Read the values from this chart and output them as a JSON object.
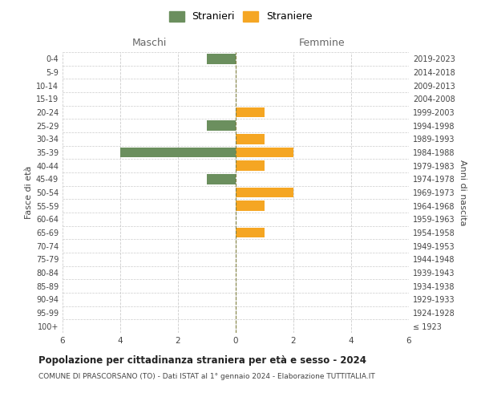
{
  "age_groups": [
    "100+",
    "95-99",
    "90-94",
    "85-89",
    "80-84",
    "75-79",
    "70-74",
    "65-69",
    "60-64",
    "55-59",
    "50-54",
    "45-49",
    "40-44",
    "35-39",
    "30-34",
    "25-29",
    "20-24",
    "15-19",
    "10-14",
    "5-9",
    "0-4"
  ],
  "birth_years": [
    "≤ 1923",
    "1924-1928",
    "1929-1933",
    "1934-1938",
    "1939-1943",
    "1944-1948",
    "1949-1953",
    "1954-1958",
    "1959-1963",
    "1964-1968",
    "1969-1973",
    "1974-1978",
    "1979-1983",
    "1984-1988",
    "1989-1993",
    "1994-1998",
    "1999-2003",
    "2004-2008",
    "2009-2013",
    "2014-2018",
    "2019-2023"
  ],
  "maschi": [
    0,
    0,
    0,
    0,
    0,
    0,
    0,
    0,
    0,
    0,
    0,
    1,
    0,
    4,
    0,
    1,
    0,
    0,
    0,
    0,
    1
  ],
  "femmine": [
    0,
    0,
    0,
    0,
    0,
    0,
    0,
    1,
    0,
    1,
    2,
    0,
    1,
    2,
    1,
    0,
    1,
    0,
    0,
    0,
    0
  ],
  "maschi_color": "#6b8f5e",
  "femmine_color": "#f5a623",
  "title": "Popolazione per cittadinanza straniera per età e sesso - 2024",
  "subtitle": "COMUNE DI PRASCORSANO (TO) - Dati ISTAT al 1° gennaio 2024 - Elaborazione TUTTITALIA.IT",
  "header_left": "Maschi",
  "header_right": "Femmine",
  "ylabel_left": "Fasce di età",
  "ylabel_right": "Anni di nascita",
  "legend_maschi": "Stranieri",
  "legend_femmine": "Straniere",
  "xlim": 6,
  "background_color": "#ffffff",
  "grid_color": "#cccccc",
  "center_line_color": "#808040"
}
